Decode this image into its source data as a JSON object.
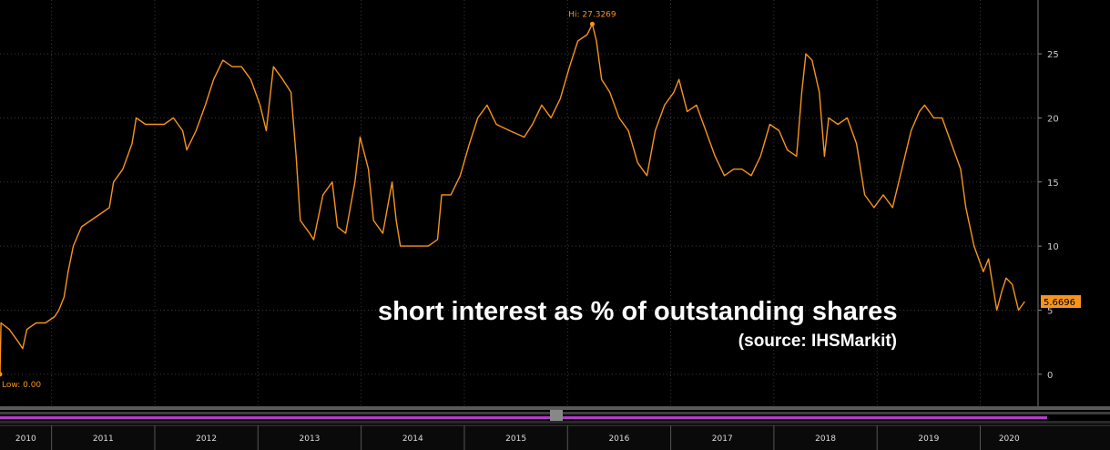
{
  "chart_data": {
    "type": "line",
    "title": "short interest as % of outstanding shares",
    "subtitle": "(source: IHSMarkit)",
    "x": [
      2010.5,
      2010.51,
      2010.59,
      2010.68,
      2010.72,
      2010.76,
      2010.85,
      2010.94,
      2011.03,
      2011.07,
      2011.12,
      2011.16,
      2011.21,
      2011.29,
      2011.38,
      2011.47,
      2011.56,
      2011.6,
      2011.69,
      2011.78,
      2011.82,
      2011.91,
      2012.0,
      2012.09,
      2012.18,
      2012.27,
      2012.31,
      2012.4,
      2012.49,
      2012.57,
      2012.66,
      2012.75,
      2012.84,
      2012.93,
      2013.02,
      2013.08,
      2013.15,
      2013.24,
      2013.32,
      2013.37,
      2013.41,
      2013.5,
      2013.54,
      2013.63,
      2013.72,
      2013.77,
      2013.85,
      2013.94,
      2013.99,
      2014.07,
      2014.12,
      2014.21,
      2014.3,
      2014.34,
      2014.38,
      2014.47,
      2014.56,
      2014.65,
      2014.74,
      2014.78,
      2014.87,
      2014.96,
      2015.05,
      2015.13,
      2015.22,
      2015.31,
      2015.44,
      2015.58,
      2015.66,
      2015.75,
      2015.84,
      2015.93,
      2016.02,
      2016.1,
      2016.19,
      2016.24,
      2016.28,
      2016.33,
      2016.41,
      2016.5,
      2016.59,
      2016.68,
      2016.77,
      2016.85,
      2016.94,
      2017.03,
      2017.08,
      2017.16,
      2017.25,
      2017.34,
      2017.43,
      2017.52,
      2017.61,
      2017.69,
      2017.78,
      2017.87,
      2017.96,
      2018.05,
      2018.13,
      2018.22,
      2018.27,
      2018.31,
      2018.37,
      2018.44,
      2018.49,
      2018.53,
      2018.62,
      2018.71,
      2018.8,
      2018.88,
      2018.97,
      2019.06,
      2019.15,
      2019.24,
      2019.33,
      2019.41,
      2019.46,
      2019.55,
      2019.63,
      2019.72,
      2019.81,
      2019.86,
      2019.94,
      2020.03,
      2020.08,
      2020.12,
      2020.16,
      2020.21,
      2020.25,
      2020.31,
      2020.37,
      2020.43
    ],
    "series": [
      {
        "name": "short interest",
        "color": "#f7941d",
        "values": [
          0,
          4,
          3.5,
          2.5,
          2,
          3.5,
          4,
          4,
          4.5,
          5,
          6,
          8,
          10,
          11.5,
          12,
          12.5,
          13,
          15,
          16,
          18,
          20,
          19.5,
          19.5,
          19.5,
          20,
          19,
          17.5,
          19,
          21,
          23,
          24.5,
          24,
          24,
          23,
          21,
          19,
          24,
          23,
          22,
          17,
          12,
          11,
          10.5,
          14,
          15,
          11.5,
          11,
          15,
          18.5,
          16,
          12,
          11,
          15,
          12,
          10,
          10,
          10,
          10,
          10.5,
          14,
          14,
          15.5,
          18,
          20,
          21,
          19.5,
          19,
          18.5,
          19.5,
          21,
          20,
          21.5,
          24,
          26,
          26.5,
          27.3269,
          26,
          23,
          22,
          20,
          19,
          16.5,
          15.5,
          19,
          21,
          22,
          23,
          20.5,
          21,
          19,
          17,
          15.5,
          16,
          16,
          15.5,
          17,
          19.5,
          19,
          17.5,
          17,
          22,
          25,
          24.5,
          22,
          17,
          20,
          19.5,
          20,
          18,
          14,
          13,
          14,
          13,
          16,
          19,
          20.5,
          21,
          20,
          20,
          18,
          16,
          13,
          10,
          8,
          9,
          7,
          5,
          6.5,
          7.5,
          7,
          5,
          5.6696
        ]
      }
    ],
    "xlim": [
      2010.5,
      2020.56
    ],
    "ylim": [
      -2.5,
      29.2
    ],
    "yticks": [
      0,
      5,
      10,
      15,
      20,
      25
    ],
    "xgrid": [
      2011,
      2012,
      2013,
      2014,
      2015,
      2016,
      2017,
      2018,
      2019,
      2020
    ],
    "xticks": [
      {
        "value": 2010.75,
        "label": "2010"
      },
      {
        "value": 2011.5,
        "label": "2011"
      },
      {
        "value": 2012.5,
        "label": "2012"
      },
      {
        "value": 2013.5,
        "label": "2013"
      },
      {
        "value": 2014.5,
        "label": "2014"
      },
      {
        "value": 2015.5,
        "label": "2015"
      },
      {
        "value": 2016.5,
        "label": "2016"
      },
      {
        "value": 2017.5,
        "label": "2017"
      },
      {
        "value": 2018.5,
        "label": "2018"
      },
      {
        "value": 2019.5,
        "label": "2019"
      },
      {
        "value": 2020.28,
        "label": "2020"
      }
    ],
    "annotations": [
      {
        "text": "Hi: 27.3269",
        "x": 2016.24,
        "y": 27.3269
      },
      {
        "text": "Low: 0.00",
        "x": 2010.5,
        "y": 0
      }
    ],
    "last_value_label": "5.6696",
    "grid": true
  }
}
